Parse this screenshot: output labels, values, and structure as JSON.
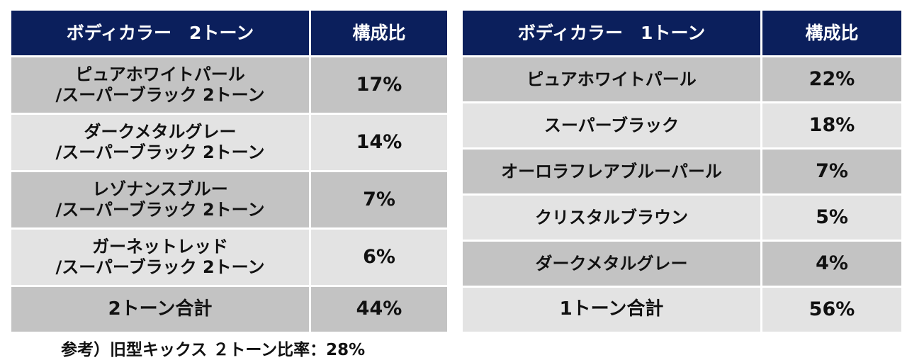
{
  "two_tone": {
    "headers": {
      "color": "ボディカラー　2トーン",
      "ratio": "構成比"
    },
    "rows": [
      {
        "line1": "ピュアホワイトパール",
        "line2": "/スーパーブラック 2トーン",
        "ratio": "17%"
      },
      {
        "line1": "ダークメタルグレー",
        "line2": "/スーパーブラック 2トーン",
        "ratio": "14%"
      },
      {
        "line1": "レゾナンスブルー",
        "line2": "/スーパーブラック 2トーン",
        "ratio": "7%"
      },
      {
        "line1": "ガーネットレッド",
        "line2": "/スーパーブラック 2トーン",
        "ratio": "6%"
      }
    ],
    "total": {
      "label": "2トーン合計",
      "ratio": "44%"
    }
  },
  "one_tone": {
    "headers": {
      "color": "ボディカラー　1トーン",
      "ratio": "構成比"
    },
    "rows": [
      {
        "name": "ピュアホワイトパール",
        "ratio": "22%"
      },
      {
        "name": "スーパーブラック",
        "ratio": "18%"
      },
      {
        "name": "オーロラフレアブルーパール",
        "ratio": "7%"
      },
      {
        "name": "クリスタルブラウン",
        "ratio": "5%"
      },
      {
        "name": "ダークメタルグレー",
        "ratio": "4%"
      }
    ],
    "total": {
      "label": "1トーン合計",
      "ratio": "56%"
    }
  },
  "footnote": "参考）旧型キックス ２トーン比率：28%",
  "colors": {
    "header_bg": "#0b1f5c",
    "row_dark": "#c3c3c3",
    "row_light": "#e3e3e3"
  }
}
